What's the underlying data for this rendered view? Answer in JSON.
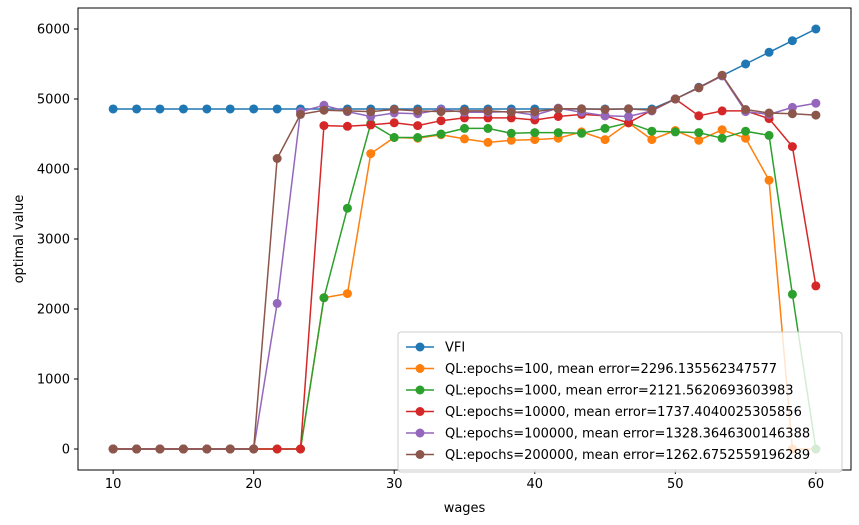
{
  "chart_data": {
    "type": "line",
    "title": "",
    "xlabel": "wages",
    "ylabel": "optimal value",
    "xlim": [
      7.5,
      62.5
    ],
    "ylim": [
      -300,
      6300
    ],
    "xticks": [
      10,
      20,
      30,
      40,
      50,
      60
    ],
    "yticks": [
      0,
      1000,
      2000,
      3000,
      4000,
      5000,
      6000
    ],
    "grid": false,
    "legend_position": "lower-right",
    "x": [
      10,
      11.67,
      13.33,
      15,
      16.67,
      18.33,
      20,
      21.67,
      23.33,
      25,
      26.67,
      28.33,
      30,
      31.67,
      33.33,
      35,
      36.67,
      38.33,
      40,
      41.67,
      43.33,
      45,
      46.67,
      48.33,
      50,
      51.67,
      53.33,
      55,
      56.67,
      58.33,
      60
    ],
    "series": [
      {
        "name": "VFI",
        "color": "#1f77b4",
        "values": [
          4858,
          4858,
          4858,
          4858,
          4858,
          4858,
          4858,
          4858,
          4858,
          4858,
          4858,
          4858,
          4858,
          4858,
          4858,
          4858,
          4858,
          4858,
          4858,
          4858,
          4858,
          4858,
          4858,
          4858,
          5000,
          5167,
          5333,
          5500,
          5667,
          5833,
          6000
        ]
      },
      {
        "name": "QL:epochs=100, mean error=2296.135562347577",
        "color": "#ff7f0e",
        "values": [
          0,
          0,
          0,
          0,
          0,
          0,
          0,
          0,
          0,
          2160,
          2220,
          4220,
          4450,
          4440,
          4490,
          4430,
          4380,
          4410,
          4420,
          4440,
          4530,
          4420,
          4660,
          4420,
          4550,
          4410,
          4560,
          4440,
          3840,
          0,
          0
        ]
      },
      {
        "name": "QL:epochs=1000, mean error=2121.5620693603983",
        "color": "#2ca02c",
        "values": [
          0,
          0,
          0,
          0,
          0,
          0,
          0,
          0,
          0,
          2160,
          3440,
          4650,
          4450,
          4450,
          4500,
          4580,
          4580,
          4510,
          4520,
          4520,
          4510,
          4580,
          4660,
          4540,
          4530,
          4520,
          4440,
          4540,
          4480,
          2210,
          0
        ]
      },
      {
        "name": "QL:epochs=10000, mean error=1737.4040025305856",
        "color": "#d62728",
        "values": [
          0,
          0,
          0,
          0,
          0,
          0,
          0,
          0,
          0,
          4620,
          4610,
          4630,
          4660,
          4620,
          4690,
          4730,
          4730,
          4730,
          4700,
          4750,
          4780,
          4760,
          4660,
          4840,
          5000,
          4760,
          4830,
          4830,
          4720,
          4320,
          2330
        ]
      },
      {
        "name": "QL:epochs=100000, mean error=1328.3646300146388",
        "color": "#9467bd",
        "values": [
          0,
          0,
          0,
          0,
          0,
          0,
          0,
          2080,
          4820,
          4910,
          4820,
          4750,
          4800,
          4790,
          4850,
          4810,
          4810,
          4820,
          4770,
          4870,
          4810,
          4760,
          4750,
          4830,
          5000,
          5160,
          5330,
          4820,
          4780,
          4880,
          4940
        ]
      },
      {
        "name": "QL:epochs=200000, mean error=1262.6752559196289",
        "color": "#8c564b",
        "values": [
          0,
          0,
          0,
          0,
          0,
          0,
          0,
          4150,
          4780,
          4840,
          4830,
          4820,
          4850,
          4830,
          4820,
          4830,
          4830,
          4810,
          4820,
          4860,
          4860,
          4850,
          4860,
          4840,
          5000,
          5160,
          5340,
          4850,
          4800,
          4790,
          4770
        ]
      }
    ]
  }
}
